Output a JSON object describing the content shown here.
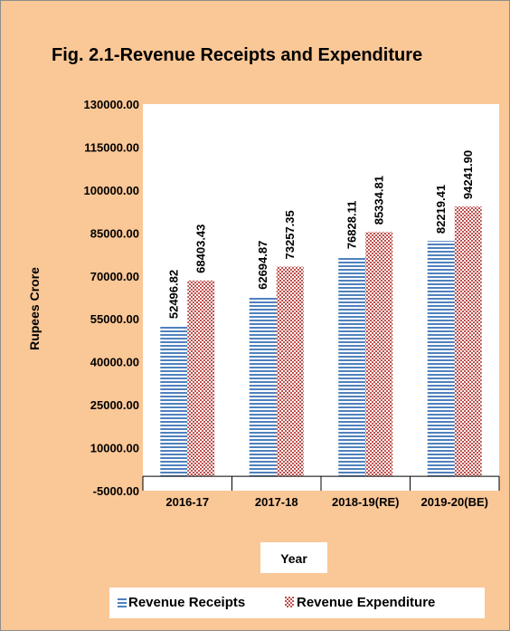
{
  "chart_data": {
    "type": "bar",
    "title": "Fig. 2.1-Revenue Receipts and Expenditure",
    "xlabel": "Year",
    "ylabel": "Rupees Crore",
    "categories": [
      "2016-17",
      "2017-18",
      "2018-19(RE)",
      "2019-20(BE)"
    ],
    "series": [
      {
        "name": "Revenue Receipts",
        "values": [
          52496.82,
          62694.87,
          76828.11,
          82219.41
        ],
        "labels": [
          "52496.82",
          "62694.87",
          "76828.11",
          "82219.41"
        ],
        "color": "#4f81bd"
      },
      {
        "name": "Revenue Expenditure",
        "values": [
          68403.43,
          73257.35,
          85334.81,
          94241.9
        ],
        "labels": [
          "68403.43",
          "73257.35",
          "85334.81",
          "94241.90"
        ],
        "color": "#c0504d"
      }
    ],
    "ylim": [
      -5000,
      130000
    ],
    "yticks": [
      -5000,
      10000,
      25000,
      40000,
      55000,
      70000,
      85000,
      100000,
      115000,
      130000
    ],
    "ytick_labels": [
      "-5000.00",
      "10000.00",
      "25000.00",
      "40000.00",
      "55000.00",
      "70000.00",
      "85000.00",
      "100000.00",
      "115000.00",
      "130000.00"
    ],
    "grid": false,
    "legend": "bottom"
  },
  "colors": {
    "background": "#fac796",
    "plot_area": "#ffffff",
    "receipts": "#4f81bd",
    "expenditure": "#c0504d"
  }
}
